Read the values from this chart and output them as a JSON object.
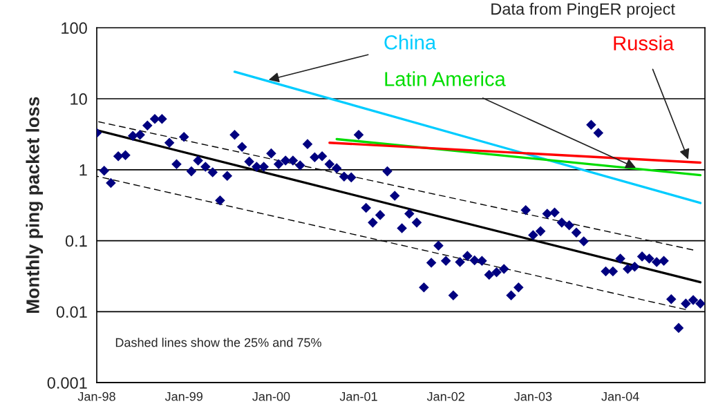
{
  "chart_data": {
    "type": "scatter",
    "ylabel": "Monthly ping packet loss",
    "annotations": [
      "Data from PingER project",
      "Dashed lines show the 25% and 75%"
    ],
    "log": "y",
    "grid": "y",
    "legend": false,
    "ylim": [
      0.001,
      100
    ],
    "yticks": [
      {
        "value": 0.001,
        "label": "0.001"
      },
      {
        "value": 0.01,
        "label": "0.01"
      },
      {
        "value": 0.1,
        "label": "0.1"
      },
      1,
      10,
      100
    ],
    "xlim": [
      "1998-01-01",
      "2004-12-20"
    ],
    "xticks": [
      {
        "value": "1998-01",
        "label": "Jan-98"
      },
      {
        "value": "1999-01",
        "label": "Jan-99"
      },
      {
        "value": "2000-01",
        "label": "Jan-00"
      },
      {
        "value": "2001-01",
        "label": "Jan-01"
      },
      {
        "value": "2002-01",
        "label": "Jan-02"
      },
      {
        "value": "2003-01",
        "label": "Jan-03"
      },
      {
        "value": "2004-01",
        "label": "Jan-04"
      }
    ],
    "series": [
      {
        "type": "scatter",
        "color": "#000080",
        "marker": "diamond",
        "x": [
          "1998-01",
          "1998-02",
          "1998-03",
          "1998-04",
          "1998-05",
          "1998-06",
          "1998-07",
          "1998-08",
          "1998-09",
          "1998-10",
          "1998-11",
          "1998-12",
          "1999-01",
          "1999-02",
          "1999-03",
          "1999-04",
          "1999-05",
          "1999-06",
          "1999-07",
          "1999-08",
          "1999-09",
          "1999-10",
          "1999-11",
          "1999-12",
          "2000-01",
          "2000-02",
          "2000-03",
          "2000-04",
          "2000-05",
          "2000-06",
          "2000-07",
          "2000-08",
          "2000-09",
          "2000-10",
          "2000-11",
          "2000-12",
          "2001-01",
          "2001-02",
          "2001-03",
          "2001-04",
          "2001-05",
          "2001-06",
          "2001-07",
          "2001-08",
          "2001-09",
          "2001-10",
          "2001-11",
          "2001-12",
          "2002-01",
          "2002-02",
          "2002-03",
          "2002-04",
          "2002-05",
          "2002-06",
          "2002-07",
          "2002-08",
          "2002-09",
          "2002-10",
          "2002-11",
          "2002-12",
          "2003-01",
          "2003-02",
          "2003-03",
          "2003-04",
          "2003-05",
          "2003-06",
          "2003-07",
          "2003-08",
          "2003-09",
          "2003-10",
          "2003-11",
          "2003-12",
          "2004-01",
          "2004-02",
          "2004-03",
          "2004-04",
          "2004-05",
          "2004-06",
          "2004-07",
          "2004-08",
          "2004-09",
          "2004-10",
          "2004-11",
          "2004-12"
        ],
        "values": [
          3.3,
          0.97,
          0.65,
          1.55,
          1.6,
          3.0,
          3.1,
          4.2,
          5.2,
          5.2,
          2.4,
          1.2,
          2.9,
          0.95,
          1.35,
          1.1,
          0.92,
          0.37,
          0.82,
          3.1,
          2.1,
          1.3,
          1.1,
          1.1,
          1.7,
          1.2,
          1.35,
          1.35,
          1.15,
          2.3,
          1.5,
          1.55,
          1.2,
          1.05,
          0.8,
          0.78,
          3.1,
          0.29,
          0.18,
          0.23,
          0.95,
          0.43,
          0.15,
          0.24,
          0.18,
          0.022,
          0.049,
          0.085,
          0.052,
          0.017,
          0.05,
          0.061,
          0.053,
          0.052,
          0.033,
          0.036,
          0.04,
          0.017,
          0.022,
          0.27,
          0.12,
          0.136,
          0.24,
          0.25,
          0.18,
          0.165,
          0.13,
          0.098,
          4.3,
          3.3,
          0.037,
          0.037,
          0.056,
          0.04,
          0.043,
          0.06,
          0.056,
          0.05,
          0.052,
          0.015,
          0.0059,
          0.013,
          0.0146,
          0.013
        ]
      },
      {
        "type": "line",
        "color": "#000000",
        "line_style": "solid",
        "x": [
          "1998-01",
          "2004-12"
        ],
        "values": [
          3.6,
          0.026
        ]
      },
      {
        "type": "line",
        "color": "#000000",
        "line_style": "dashed",
        "x": [
          "1998-01",
          "2004-11"
        ],
        "values": [
          4.8,
          0.074
        ]
      },
      {
        "type": "line",
        "color": "#000000",
        "line_style": "dashed",
        "x": [
          "1998-01",
          "2004-10"
        ],
        "values": [
          0.81,
          0.0107
        ]
      },
      {
        "type": "line",
        "name": "China",
        "color": "#00ccff",
        "line_style": "solid",
        "x": [
          "1999-08",
          "2004-12"
        ],
        "values": [
          24,
          0.34
        ]
      },
      {
        "type": "line",
        "name": "Latin America",
        "color": "#00dd00",
        "line_style": "solid",
        "x": [
          "2000-10",
          "2004-12"
        ],
        "values": [
          2.7,
          0.84
        ]
      },
      {
        "type": "line",
        "name": "Russia",
        "color": "#ff0000",
        "line_style": "solid",
        "x": [
          "2000-09",
          "2004-12"
        ],
        "values": [
          2.4,
          1.26
        ]
      }
    ]
  }
}
